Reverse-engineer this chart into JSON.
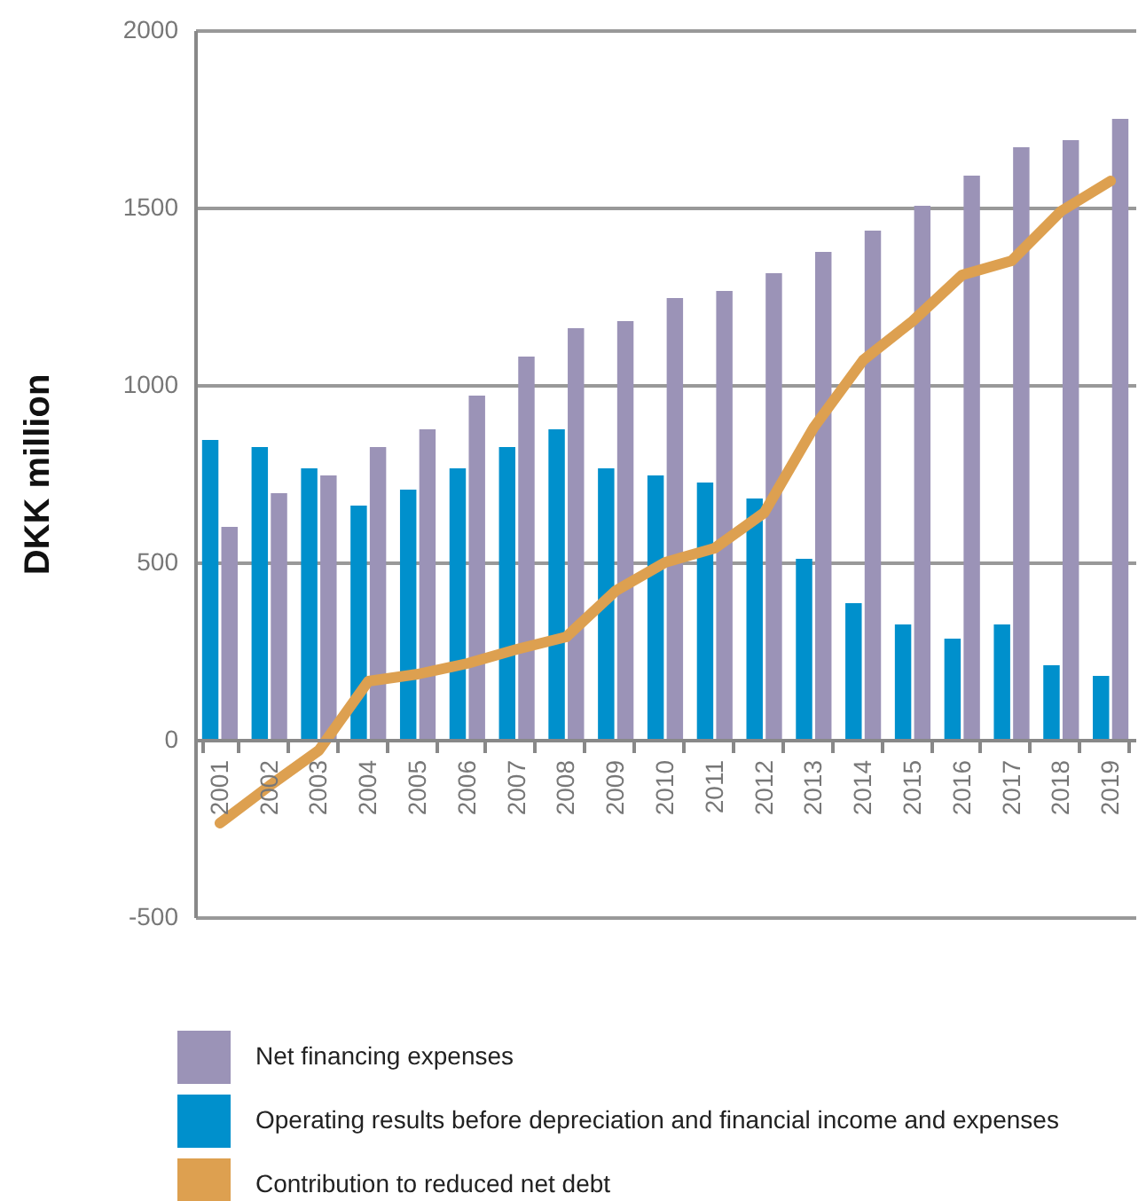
{
  "chart_data": {
    "type": "bar",
    "ylabel": "DKK million",
    "categories": [
      "2001",
      "2002",
      "2003",
      "2004",
      "2005",
      "2006",
      "2007",
      "2008",
      "2009",
      "2010",
      "2011",
      "2012",
      "2013",
      "2014",
      "2015",
      "2016",
      "2017",
      "2018",
      "2019"
    ],
    "series": [
      {
        "name": "Net financing expenses",
        "color": "#9b93b7",
        "values": [
          600,
          695,
          745,
          825,
          875,
          970,
          1080,
          1160,
          1180,
          1245,
          1265,
          1315,
          1375,
          1435,
          1505,
          1590,
          1670,
          1690,
          1750
        ]
      },
      {
        "name": "Operating results before depreciation and financial income and expenses",
        "color": "#0090cc",
        "values": [
          845,
          825,
          765,
          660,
          705,
          765,
          825,
          875,
          765,
          745,
          725,
          680,
          510,
          385,
          325,
          285,
          325,
          210,
          180
        ]
      },
      {
        "name": "Contribution to reduced net debt",
        "type": "line",
        "color": "#dda050",
        "values": [
          -235,
          -130,
          -30,
          165,
          185,
          215,
          255,
          290,
          420,
          500,
          540,
          640,
          880,
          1070,
          1180,
          1310,
          1350,
          1490,
          1575
        ]
      }
    ],
    "ylim": [
      -500,
      2000
    ],
    "yticks": [
      -500,
      0,
      500,
      1000,
      1500,
      2000
    ],
    "grid": "y",
    "legend": "bottom",
    "marker": "none",
    "line_style": "solid"
  }
}
